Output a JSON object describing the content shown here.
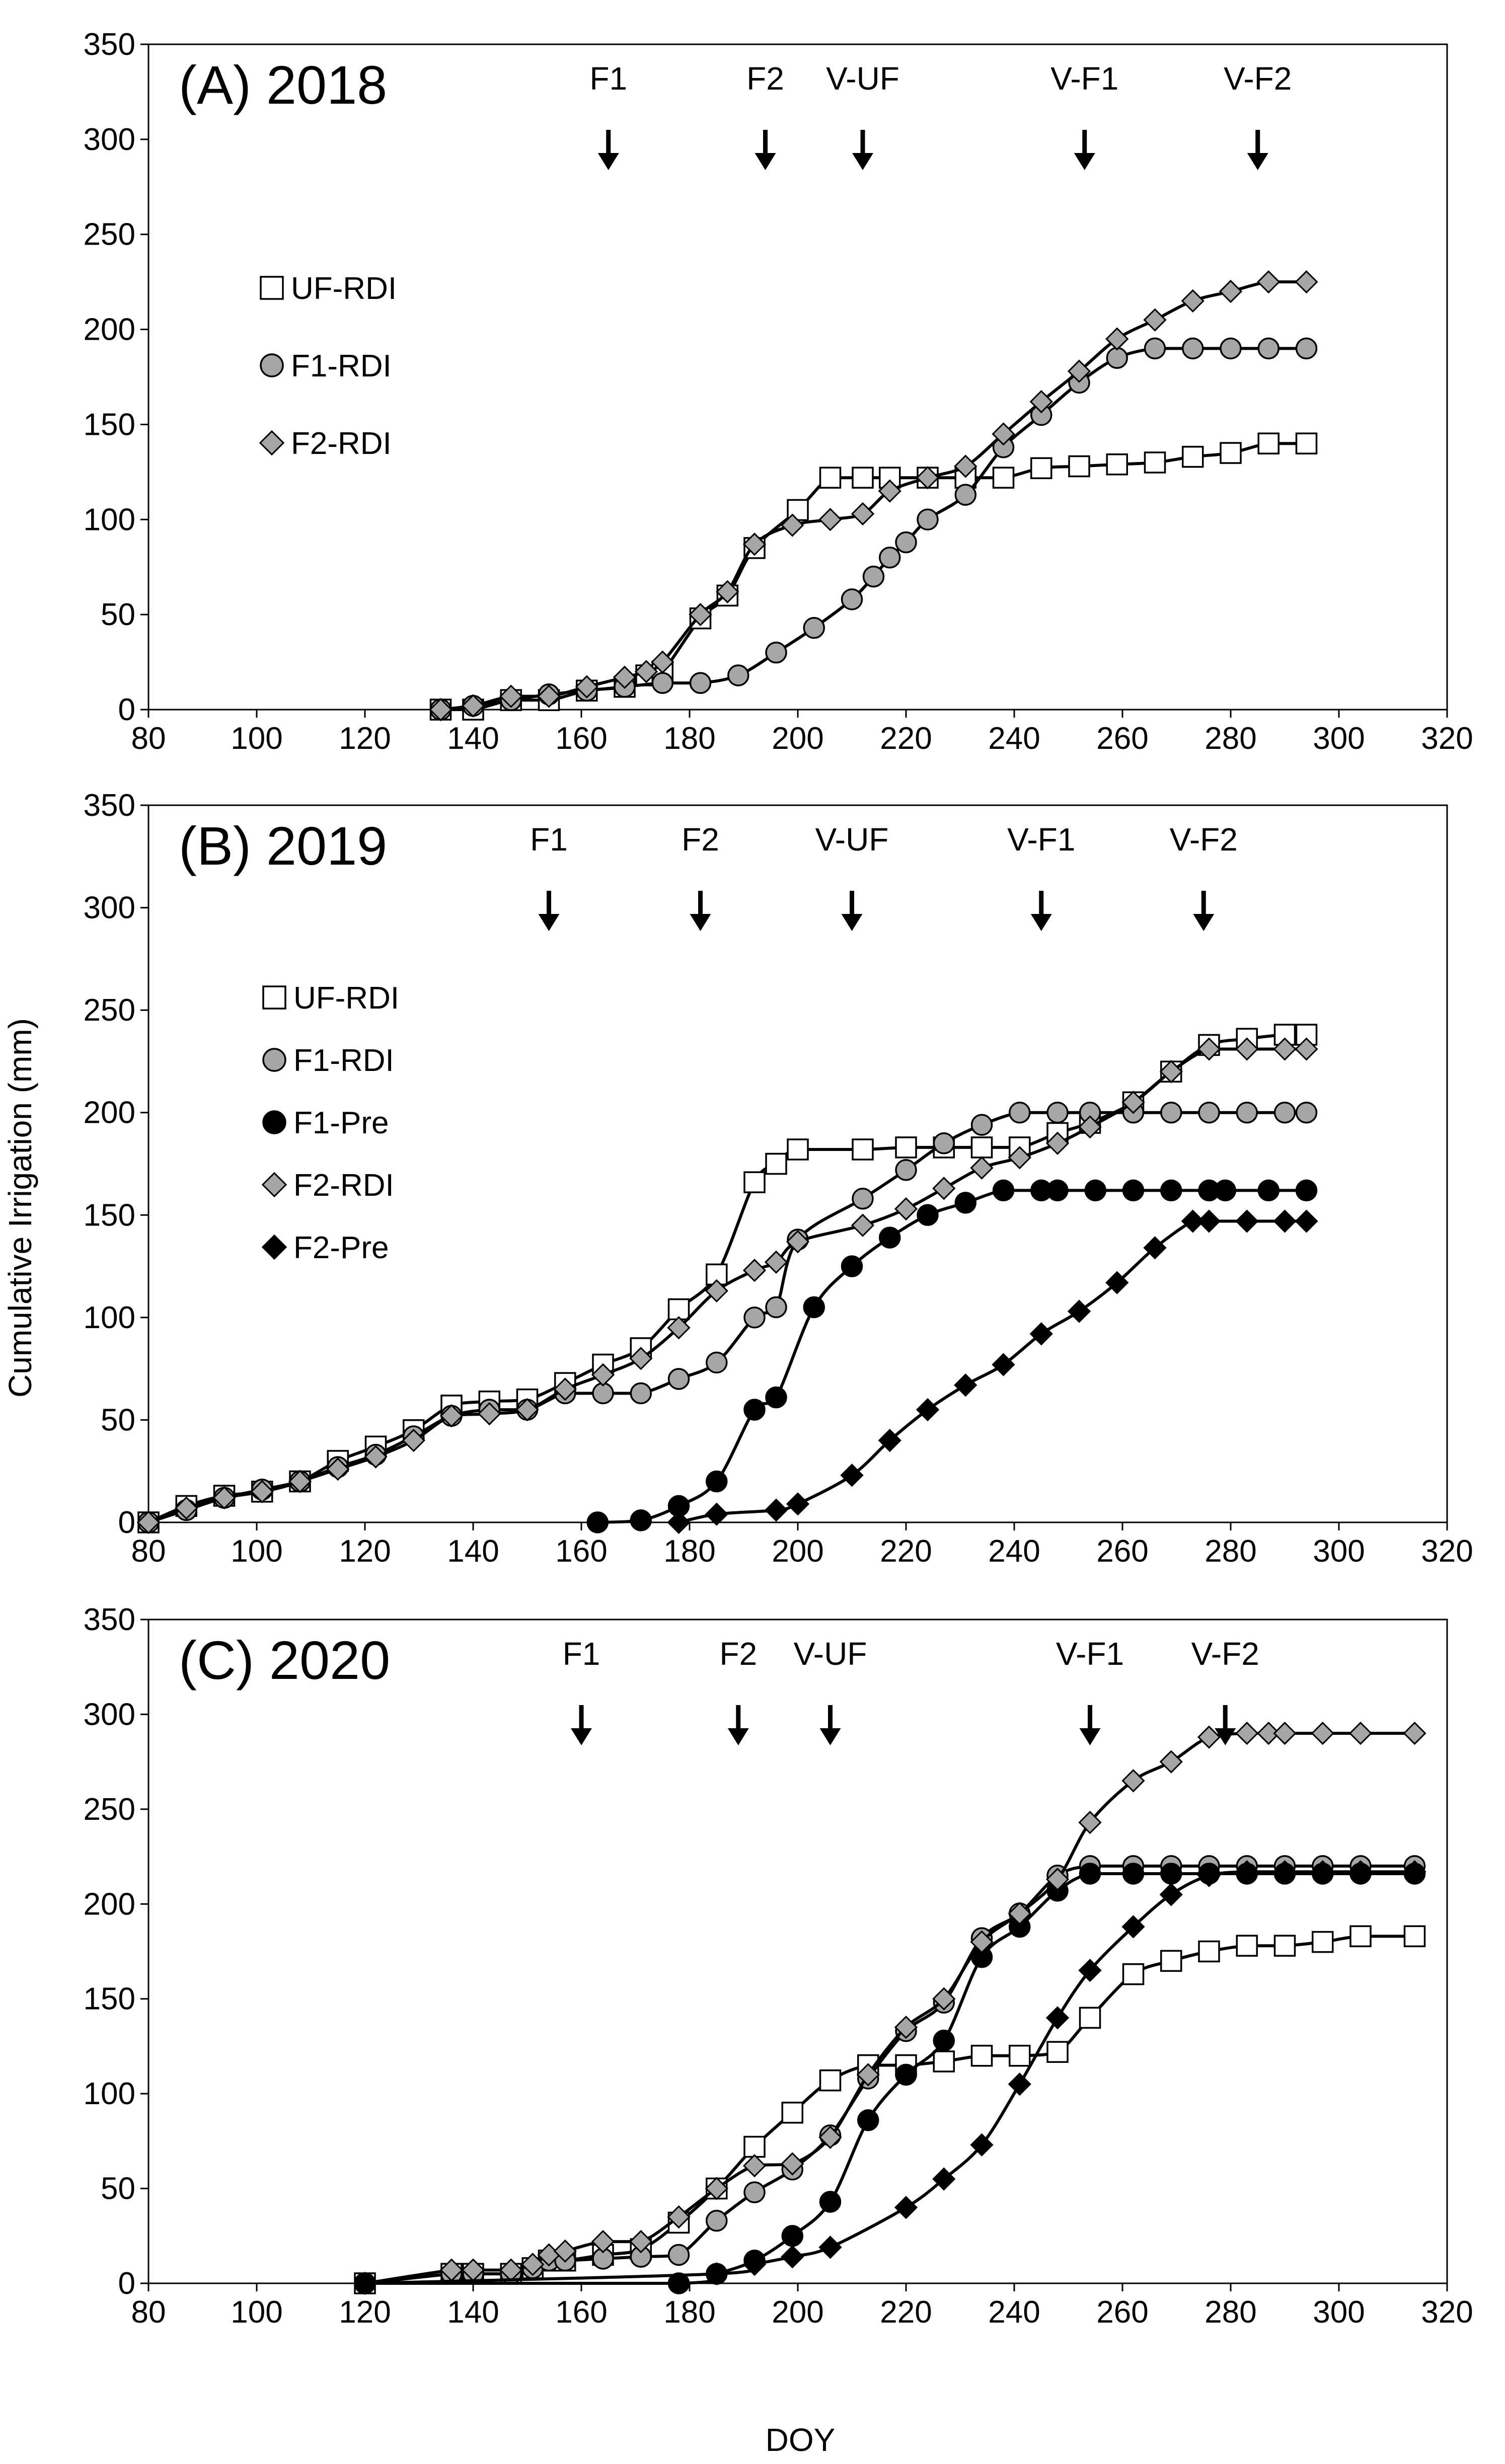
{
  "figure": {
    "ylabel": "Cumulative Irrigation (mm)",
    "xlabel": "DOY"
  },
  "chart_data": [
    {
      "type": "line",
      "title": "(A) 2018",
      "xlim": [
        80,
        320
      ],
      "ylim": [
        0,
        350
      ],
      "xticks": [
        80,
        100,
        120,
        140,
        160,
        180,
        200,
        220,
        240,
        260,
        280,
        300,
        320
      ],
      "yticks": [
        0,
        50,
        100,
        150,
        200,
        250,
        300,
        350
      ],
      "grid": false,
      "legend": "left",
      "annotations": [
        {
          "label": "F1",
          "x": 165
        },
        {
          "label": "F2",
          "x": 194
        },
        {
          "label": "V-UF",
          "x": 212
        },
        {
          "label": "V-F1",
          "x": 253
        },
        {
          "label": "V-F2",
          "x": 285
        }
      ],
      "series": [
        {
          "name": "UF-RDI",
          "marker": "square-open",
          "x": [
            134,
            140,
            147,
            154,
            161,
            168,
            172,
            175,
            182,
            187,
            192,
            200,
            206,
            212,
            217,
            224,
            231,
            238,
            245,
            252,
            259,
            266,
            273,
            280,
            287,
            294
          ],
          "y": [
            0,
            0,
            5,
            5,
            10,
            12,
            18,
            20,
            48,
            60,
            85,
            105,
            122,
            122,
            122,
            122,
            122,
            122,
            127,
            128,
            129,
            130,
            133,
            135,
            140,
            140
          ]
        },
        {
          "name": "F1-RDI",
          "marker": "circle-grey",
          "x": [
            134,
            140,
            147,
            154,
            161,
            168,
            175,
            182,
            189,
            196,
            203,
            210,
            214,
            217,
            220,
            224,
            231,
            238,
            245,
            252,
            259,
            266,
            273,
            280,
            287,
            294
          ],
          "y": [
            0,
            2,
            5,
            8,
            10,
            12,
            14,
            14,
            18,
            30,
            43,
            58,
            70,
            80,
            88,
            100,
            113,
            138,
            155,
            172,
            185,
            190,
            190,
            190,
            190,
            190
          ]
        },
        {
          "name": "F2-RDI",
          "marker": "diamond-grey",
          "x": [
            134,
            140,
            147,
            154,
            161,
            168,
            172,
            175,
            182,
            187,
            192,
            199,
            206,
            212,
            217,
            224,
            231,
            238,
            245,
            252,
            259,
            266,
            273,
            280,
            287,
            294
          ],
          "y": [
            0,
            2,
            7,
            7,
            12,
            17,
            20,
            25,
            50,
            62,
            87,
            97,
            100,
            103,
            115,
            122,
            128,
            145,
            162,
            178,
            195,
            205,
            215,
            220,
            225,
            225
          ]
        }
      ]
    },
    {
      "type": "line",
      "title": "(B) 2019",
      "xlim": [
        80,
        320
      ],
      "ylim": [
        0,
        350
      ],
      "xticks": [
        80,
        100,
        120,
        140,
        160,
        180,
        200,
        220,
        240,
        260,
        280,
        300,
        320
      ],
      "yticks": [
        0,
        50,
        100,
        150,
        200,
        250,
        300,
        350
      ],
      "grid": false,
      "legend": "left",
      "annotations": [
        {
          "label": "F1",
          "x": 154
        },
        {
          "label": "F2",
          "x": 182
        },
        {
          "label": "V-UF",
          "x": 210
        },
        {
          "label": "V-F1",
          "x": 245
        },
        {
          "label": "V-F2",
          "x": 275
        }
      ],
      "series": [
        {
          "name": "UF-RDI",
          "marker": "square-open",
          "x": [
            80,
            87,
            94,
            101,
            108,
            115,
            122,
            129,
            136,
            143,
            150,
            157,
            164,
            171,
            178,
            185,
            192,
            196,
            200,
            212,
            220,
            227,
            234,
            241,
            248,
            254,
            262,
            269,
            276,
            283,
            290,
            294
          ],
          "y": [
            0,
            8,
            13,
            15,
            20,
            30,
            37,
            45,
            57,
            59,
            60,
            68,
            77,
            85,
            104,
            121,
            166,
            175,
            182,
            182,
            183,
            183,
            183,
            183,
            190,
            195,
            205,
            220,
            233,
            236,
            238,
            238
          ]
        },
        {
          "name": "F1-RDI",
          "marker": "circle-grey",
          "x": [
            80,
            87,
            94,
            101,
            108,
            115,
            122,
            129,
            136,
            143,
            150,
            157,
            164,
            171,
            178,
            185,
            192,
            196,
            200,
            212,
            220,
            227,
            234,
            241,
            248,
            254,
            262,
            269,
            276,
            283,
            290,
            294
          ],
          "y": [
            0,
            6,
            12,
            16,
            20,
            27,
            33,
            42,
            52,
            55,
            55,
            63,
            63,
            63,
            70,
            78,
            100,
            105,
            138,
            158,
            172,
            185,
            194,
            200,
            200,
            200,
            200,
            200,
            200,
            200,
            200,
            200
          ]
        },
        {
          "name": "F1-Pre",
          "marker": "circle-black",
          "x": [
            163,
            171,
            178,
            185,
            192,
            196,
            203,
            210,
            217,
            224,
            231,
            238,
            245,
            248,
            255,
            262,
            269,
            276,
            279,
            287,
            294
          ],
          "y": [
            0,
            1,
            8,
            20,
            55,
            61,
            105,
            125,
            139,
            150,
            156,
            162,
            162,
            162,
            162,
            162,
            162,
            162,
            162,
            162,
            162
          ]
        },
        {
          "name": "F2-RDI",
          "marker": "diamond-grey",
          "x": [
            80,
            87,
            94,
            101,
            108,
            115,
            122,
            129,
            136,
            143,
            150,
            157,
            164,
            171,
            178,
            185,
            192,
            196,
            200,
            212,
            220,
            227,
            234,
            241,
            248,
            254,
            262,
            269,
            276,
            283,
            290,
            294
          ],
          "y": [
            0,
            7,
            12,
            15,
            20,
            26,
            32,
            40,
            52,
            53,
            55,
            65,
            72,
            80,
            95,
            113,
            123,
            127,
            137,
            145,
            153,
            163,
            173,
            178,
            185,
            193,
            205,
            220,
            231,
            231,
            231,
            231
          ]
        },
        {
          "name": "F2-Pre",
          "marker": "diamond-black",
          "x": [
            178,
            185,
            196,
            200,
            210,
            217,
            224,
            231,
            238,
            245,
            252,
            259,
            266,
            273,
            276,
            283,
            290,
            294
          ],
          "y": [
            0,
            4,
            6,
            9,
            23,
            40,
            55,
            67,
            77,
            92,
            103,
            117,
            134,
            147,
            147,
            147,
            147,
            147
          ]
        }
      ]
    },
    {
      "type": "line",
      "title": "(C) 2020",
      "xlim": [
        80,
        320
      ],
      "ylim": [
        0,
        350
      ],
      "xticks": [
        80,
        100,
        120,
        140,
        160,
        180,
        200,
        220,
        240,
        260,
        280,
        300,
        320
      ],
      "yticks": [
        0,
        50,
        100,
        150,
        200,
        250,
        300,
        350
      ],
      "grid": false,
      "legend": "none",
      "xlabel_shown": true,
      "annotations": [
        {
          "label": "F1",
          "x": 160
        },
        {
          "label": "F2",
          "x": 189
        },
        {
          "label": "V-UF",
          "x": 206
        },
        {
          "label": "V-F1",
          "x": 254
        },
        {
          "label": "V-F2",
          "x": 279
        }
      ],
      "series": [
        {
          "name": "UF-RDI",
          "marker": "square-open",
          "x": [
            120,
            136,
            140,
            147,
            151,
            154,
            157,
            164,
            171,
            178,
            185,
            192,
            199,
            206,
            213,
            220,
            227,
            234,
            241,
            248,
            254,
            262,
            269,
            276,
            283,
            290,
            297,
            304,
            314
          ],
          "y": [
            0,
            5,
            5,
            5,
            8,
            12,
            12,
            15,
            18,
            32,
            50,
            72,
            90,
            107,
            115,
            115,
            117,
            120,
            120,
            122,
            140,
            163,
            170,
            175,
            178,
            178,
            180,
            183,
            183
          ]
        },
        {
          "name": "F1-RDI",
          "marker": "circle-grey",
          "x": [
            120,
            136,
            140,
            147,
            151,
            154,
            157,
            164,
            171,
            178,
            185,
            192,
            199,
            206,
            213,
            220,
            227,
            234,
            241,
            248,
            254,
            262,
            269,
            276,
            283,
            290,
            297,
            304,
            314
          ],
          "y": [
            0,
            5,
            5,
            5,
            8,
            12,
            12,
            13,
            14,
            15,
            33,
            48,
            60,
            78,
            108,
            133,
            148,
            182,
            195,
            215,
            220,
            220,
            220,
            220,
            220,
            220,
            220,
            220,
            220
          ]
        },
        {
          "name": "F1-Pre",
          "marker": "circle-black",
          "x": [
            120,
            178,
            185,
            192,
            199,
            206,
            213,
            220,
            227,
            234,
            241,
            248,
            254,
            262,
            269,
            276,
            283,
            290,
            297,
            304,
            314
          ],
          "y": [
            0,
            0,
            5,
            12,
            25,
            43,
            86,
            110,
            128,
            172,
            188,
            207,
            216,
            216,
            216,
            216,
            216,
            216,
            216,
            216,
            216
          ]
        },
        {
          "name": "F2-RDI",
          "marker": "diamond-grey",
          "x": [
            120,
            136,
            140,
            147,
            151,
            154,
            157,
            164,
            171,
            178,
            185,
            192,
            199,
            206,
            213,
            220,
            227,
            234,
            241,
            248,
            254,
            262,
            269,
            276,
            283,
            287,
            290,
            297,
            304,
            314
          ],
          "y": [
            0,
            7,
            7,
            7,
            10,
            15,
            17,
            22,
            22,
            35,
            50,
            62,
            63,
            77,
            110,
            135,
            150,
            180,
            195,
            213,
            243,
            265,
            275,
            288,
            290,
            290,
            290,
            290,
            290,
            290
          ]
        },
        {
          "name": "F2-Pre",
          "marker": "diamond-black",
          "x": [
            120,
            185,
            192,
            199,
            206,
            220,
            227,
            234,
            241,
            248,
            254,
            262,
            269,
            276,
            283,
            290,
            297,
            304,
            314
          ],
          "y": [
            0,
            5,
            10,
            14,
            19,
            40,
            55,
            73,
            105,
            140,
            165,
            188,
            205,
            215,
            217,
            217,
            217,
            217,
            217
          ]
        }
      ]
    }
  ]
}
